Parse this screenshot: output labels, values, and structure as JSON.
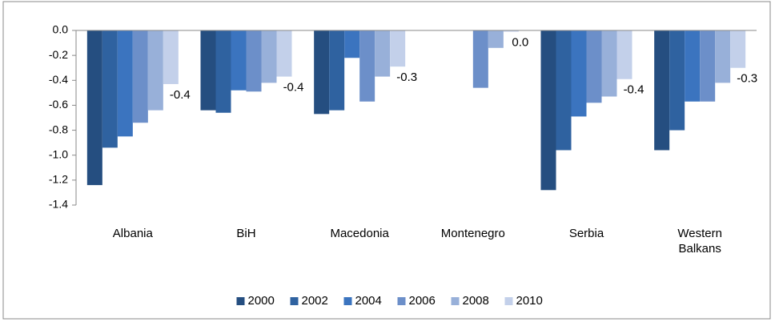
{
  "chart_data": {
    "type": "bar",
    "categories": [
      "Albania",
      "BiH",
      "Macedonia",
      "Montenegro",
      "Serbia",
      "Western Balkans"
    ],
    "series": [
      {
        "name": "2000",
        "color": "#254e80",
        "values": [
          -1.24,
          -0.64,
          -0.67,
          null,
          -1.28,
          -0.96
        ]
      },
      {
        "name": "2002",
        "color": "#2f62a0",
        "values": [
          -0.94,
          -0.66,
          -0.64,
          null,
          -0.96,
          -0.8
        ]
      },
      {
        "name": "2004",
        "color": "#3b74bf",
        "values": [
          -0.85,
          -0.48,
          -0.22,
          null,
          -0.69,
          -0.57
        ]
      },
      {
        "name": "2006",
        "color": "#6c8fc9",
        "values": [
          -0.74,
          -0.49,
          -0.57,
          -0.46,
          -0.58,
          -0.57
        ]
      },
      {
        "name": "2008",
        "color": "#98b0d9",
        "values": [
          -0.64,
          -0.42,
          -0.37,
          -0.14,
          -0.53,
          -0.42
        ]
      },
      {
        "name": "2010",
        "color": "#c3d0ea",
        "values": [
          -0.43,
          -0.37,
          -0.29,
          -0.01,
          -0.39,
          -0.3
        ],
        "value_labels": [
          "-0.4",
          "-0.4",
          "-0.3",
          "0.0",
          "-0.4",
          "-0.3"
        ]
      }
    ],
    "ylim": [
      -1.4,
      0
    ],
    "yticks": [
      {
        "value": 0,
        "label": "0.0"
      },
      -0.2,
      -0.4,
      -0.6,
      -0.8,
      {
        "value": -1,
        "label": "-1.0"
      },
      -1.2,
      -1.4
    ],
    "legend": "bottom"
  }
}
